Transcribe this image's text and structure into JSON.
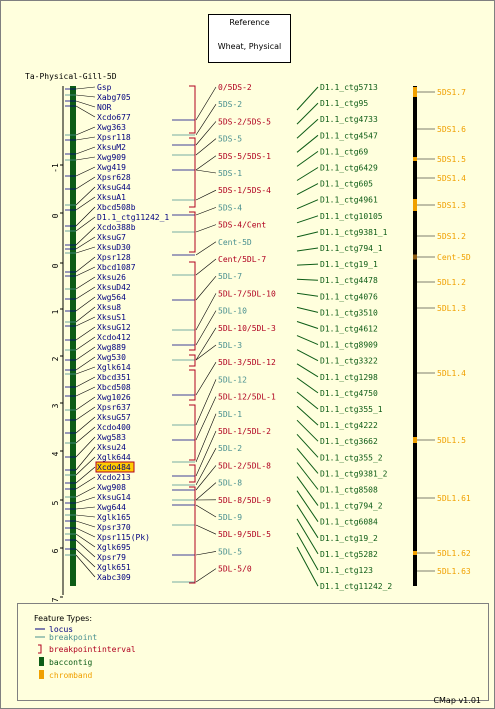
{
  "reference": {
    "line1": "Reference",
    "line2": "Wheat, Physical"
  },
  "map_title": "Ta-Physical-Gill-5D",
  "axis_ticks": [
    "-1",
    "0",
    "0",
    "1",
    "2",
    "3",
    "4",
    "5",
    "6",
    "7"
  ],
  "left_markers": [
    "Gsp",
    "Xabg705",
    "NOR",
    "Xcdo677",
    "Xwg363",
    "Xpsr118",
    "XksuM2",
    "Xwg909",
    "Xwg419",
    "Xpsr628",
    "XksuG44",
    "XksuA1",
    "Xbcd508b",
    "D1.1_ctg11242_1",
    "Xcdo388b",
    "XksuG7",
    "XksuD30",
    "Xpsr128",
    "Xbcd1087",
    "Xksu26",
    "XksuD42",
    "Xwg564",
    "Xksu8",
    "XksuS1",
    "XksuG12",
    "Xcdo412",
    "Xwg889",
    "Xwg530",
    "Xglk614",
    "Xbcd351",
    "Xbcd508",
    "Xwg1026",
    "Xpsr637",
    "XksuG57",
    "Xcdo400",
    "Xwg583",
    "Xksu24",
    "Xglk644",
    "Xcdo484",
    "Xcdo213",
    "Xwg908",
    "XksuG14",
    "Xwg644",
    "Xglk165",
    "Xpsr370",
    "Xpsr115(Pk)",
    "Xglk695",
    "Xpsr79",
    "Xglk651",
    "Xabc309"
  ],
  "highlighted_marker": "Xcdo484",
  "bin_labels": [
    "0/5DS-2",
    "5DS-2",
    "5DS-2/5DS-5",
    "5DS-5",
    "5DS-5/5DS-1",
    "5DS-1",
    "5DS-1/5DS-4",
    "5DS-4",
    "5DS-4/Cent",
    "Cent-5D",
    "Cent/5DL-7",
    "5DL-7",
    "5DL-7/5DL-10",
    "5DL-10",
    "5DL-10/5DL-3",
    "5DL-3",
    "5DL-3/5DL-12",
    "5DL-12",
    "5DL-12/5DL-1",
    "5DL-1",
    "5DL-1/5DL-2",
    "5DL-2",
    "5DL-2/5DL-8",
    "5DL-8",
    "5DL-8/5DL-9",
    "5DL-9",
    "5DL-9/5DL-5",
    "5DL-5",
    "5DL-5/0"
  ],
  "contigs": [
    "D1.1_ctg5713",
    "D1.1_ctg95",
    "D1.1_ctg4733",
    "D1.1_ctg4547",
    "D1.1_ctg69",
    "D1.1_ctg6429",
    "D1.1_ctg605",
    "D1.1_ctg4961",
    "D1.1_ctg10105",
    "D1.1_ctg9381_1",
    "D1.1_ctg794_1",
    "D1.1_ctg19_1",
    "D1.1_ctg4478",
    "D1.1_ctg4076",
    "D1.1_ctg3510",
    "D1.1_ctg4612",
    "D1.1_ctg8909",
    "D1.1_ctg3322",
    "D1.1_ctg1298",
    "D1.1_ctg4750",
    "D1.1_ctg355_1",
    "D1.1_ctg4222",
    "D1.1_ctg3662",
    "D1.1_ctg355_2",
    "D1.1_ctg9381_2",
    "D1.1_ctg8508",
    "D1.1_ctg794_2",
    "D1.1_ctg6084",
    "D1.1_ctg19_2",
    "D1.1_ctg5282",
    "D1.1_ctg123",
    "D1.1_ctg11242_2"
  ],
  "chrombands": [
    "5DS1.7",
    "5DS1.6",
    "5DS1.5",
    "5DS1.4",
    "5DS1.3",
    "5DS1.2",
    "Cent-5D",
    "5DL1.2",
    "5DL1.3",
    "5DL1.4",
    "5DL1.5",
    "5DL1.61",
    "5DL1.62",
    "5DL1.63"
  ],
  "legend": {
    "title": "Feature Types:",
    "items": [
      {
        "label": "locus",
        "icon": "line",
        "color": "#000080"
      },
      {
        "label": "breakpoint",
        "icon": "line",
        "color": "#4a9090"
      },
      {
        "label": "breakpointinterval",
        "icon": "bracket",
        "color": "#b00020"
      },
      {
        "label": "baccontig",
        "icon": "bar",
        "color": "#0d5c16"
      },
      {
        "label": "chromband",
        "icon": "bar",
        "color": "#f0a000"
      }
    ]
  },
  "version": "CMap v1.01",
  "colors": {
    "locus": "#000080",
    "breakpoint": "#4a9090",
    "interval": "#b00020",
    "contig": "#0d5c16",
    "chromband": "#f0a000",
    "highlight": "#ffcc00"
  }
}
